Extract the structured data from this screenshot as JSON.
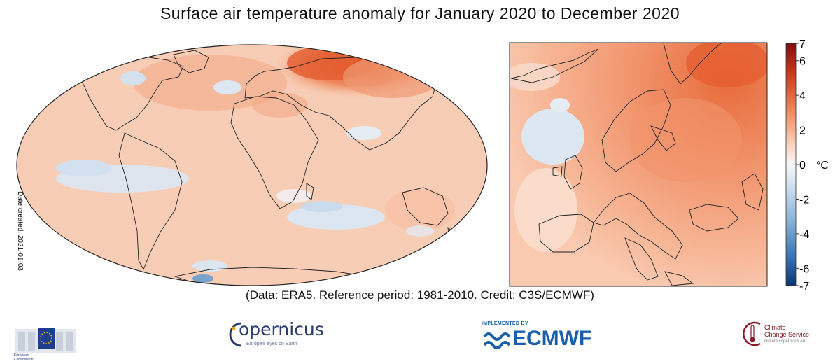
{
  "title": "Surface air temperature anomaly for January 2020 to December 2020",
  "date_created": "Date created: 2021-01-03",
  "credit": "(Data: ERA5.  Reference period: 1981-2010.  Credit: C3S/ECMWF)",
  "colorbar": {
    "unit": "°C",
    "ticks": [
      "7",
      "6",
      "4",
      "2",
      "0",
      "-2",
      "-4",
      "-6",
      "-7"
    ],
    "range": [
      -7,
      7
    ]
  },
  "colors": {
    "warm_light": "#f9d2bd",
    "warm_mid": "#f29f7a",
    "warm_strong": "#e45b2e",
    "neutral": "#f7f7f7",
    "cool_light": "#dbe7f2",
    "cool_mid": "#a9c6e0"
  },
  "logos": {
    "eu": {
      "line1": "European",
      "line2": "Commission"
    },
    "copernicus": {
      "name": "opernicus",
      "tagline": "Europe's eyes on Earth"
    },
    "ecmwf": {
      "implemented_by": "IMPLEMENTED BY",
      "name": "ECMWF"
    },
    "c3s": {
      "line1": "Climate",
      "line2": "Change Service",
      "tagline": "climate.copernicus.eu"
    }
  }
}
